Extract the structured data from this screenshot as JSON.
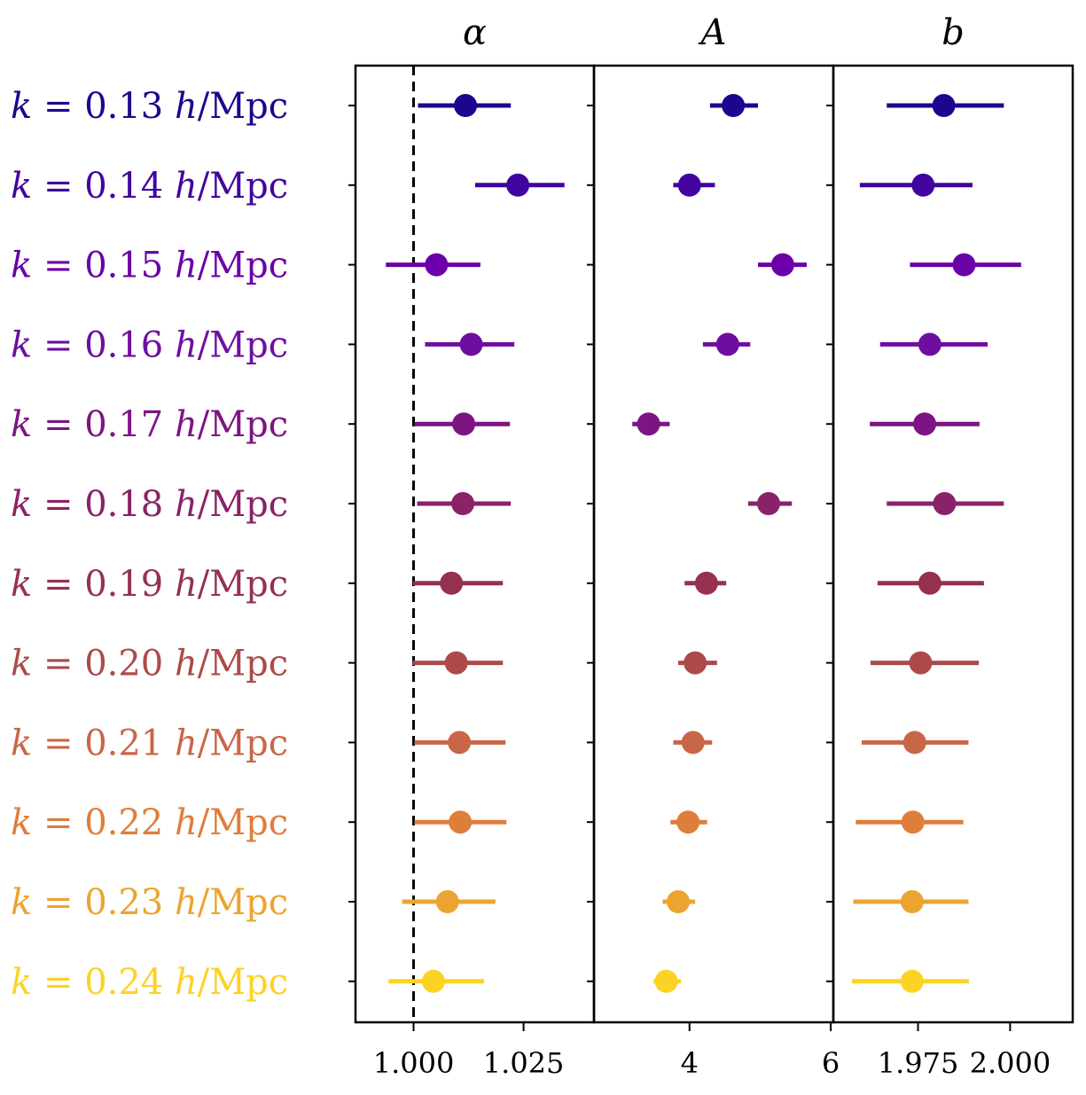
{
  "chart_data": {
    "type": "scatter",
    "subtype": "forest-plot with error bars",
    "row_label_template": "k = {k} h/Mpc",
    "rows": [
      {
        "k": "0.13",
        "color": "#1c068e"
      },
      {
        "k": "0.14",
        "color": "#42049e"
      },
      {
        "k": "0.15",
        "color": "#6a00a8"
      },
      {
        "k": "0.16",
        "color": "#6e0ea0"
      },
      {
        "k": "0.17",
        "color": "#7c1582"
      },
      {
        "k": "0.18",
        "color": "#8a2267"
      },
      {
        "k": "0.19",
        "color": "#95314f"
      },
      {
        "k": "0.20",
        "color": "#ac4a4a"
      },
      {
        "k": "0.21",
        "color": "#c96648"
      },
      {
        "k": "0.22",
        "color": "#df7d3b"
      },
      {
        "k": "0.23",
        "color": "#eca430"
      },
      {
        "k": "0.24",
        "color": "#fcd225"
      }
    ],
    "panels": [
      {
        "title": "α",
        "xlim": [
          0.9868,
          1.041
        ],
        "ticks": [
          {
            "value": 1.0,
            "label": "1.000"
          },
          {
            "value": 1.025,
            "label": "1.025"
          }
        ],
        "reference_line": 1.0,
        "points": [
          {
            "value": 1.0118,
            "low": 1.001,
            "high": 1.0221
          },
          {
            "value": 1.0237,
            "low": 1.014,
            "high": 1.0343
          },
          {
            "value": 1.0052,
            "low": 0.9937,
            "high": 1.0152
          },
          {
            "value": 1.0131,
            "low": 1.0026,
            "high": 1.0229
          },
          {
            "value": 1.0114,
            "low": 1.0002,
            "high": 1.0219
          },
          {
            "value": 1.0112,
            "low": 1.0008,
            "high": 1.0221
          },
          {
            "value": 1.0086,
            "low": 0.9999,
            "high": 1.0203
          },
          {
            "value": 1.0097,
            "low": 0.9998,
            "high": 1.0203
          },
          {
            "value": 1.0104,
            "low": 1.0002,
            "high": 1.0209
          },
          {
            "value": 1.0106,
            "low": 1.0002,
            "high": 1.0211
          },
          {
            "value": 1.0077,
            "low": 0.9974,
            "high": 1.0186
          },
          {
            "value": 1.0045,
            "low": 0.9943,
            "high": 1.016
          }
        ]
      },
      {
        "title": "A",
        "xlim": [
          2.647,
          6.037
        ],
        "ticks": [
          {
            "value": 4,
            "label": "4"
          },
          {
            "value": 6,
            "label": "6"
          }
        ],
        "points": [
          {
            "value": 4.62,
            "low": 4.29,
            "high": 4.97
          },
          {
            "value": 4.0,
            "low": 3.77,
            "high": 4.36
          },
          {
            "value": 5.32,
            "low": 4.97,
            "high": 5.66
          },
          {
            "value": 4.54,
            "low": 4.19,
            "high": 4.86
          },
          {
            "value": 3.42,
            "low": 3.19,
            "high": 3.72
          },
          {
            "value": 5.12,
            "low": 4.83,
            "high": 5.45
          },
          {
            "value": 4.24,
            "low": 3.93,
            "high": 4.52
          },
          {
            "value": 4.08,
            "low": 3.84,
            "high": 4.39
          },
          {
            "value": 4.05,
            "low": 3.77,
            "high": 4.32
          },
          {
            "value": 3.98,
            "low": 3.73,
            "high": 4.25
          },
          {
            "value": 3.84,
            "low": 3.62,
            "high": 4.08
          },
          {
            "value": 3.67,
            "low": 3.49,
            "high": 3.88
          }
        ]
      },
      {
        "title": "b",
        "xlim": [
          1.952,
          2.017
        ],
        "ticks": [
          {
            "value": 1.975,
            "label": "1.975"
          },
          {
            "value": 2.0,
            "label": "2.000"
          }
        ],
        "points": [
          {
            "value": 1.982,
            "low": 1.9665,
            "high": 1.9983
          },
          {
            "value": 1.9764,
            "low": 1.9592,
            "high": 1.9898
          },
          {
            "value": 1.9875,
            "low": 1.9728,
            "high": 2.003
          },
          {
            "value": 1.9782,
            "low": 1.9647,
            "high": 1.9939
          },
          {
            "value": 1.9768,
            "low": 1.9619,
            "high": 1.9917
          },
          {
            "value": 1.9822,
            "low": 1.9665,
            "high": 1.9983
          },
          {
            "value": 1.9782,
            "low": 1.964,
            "high": 1.9929
          },
          {
            "value": 1.9757,
            "low": 1.9621,
            "high": 1.9915
          },
          {
            "value": 1.9741,
            "low": 1.9597,
            "high": 1.9887
          },
          {
            "value": 1.9736,
            "low": 1.9581,
            "high": 1.9873
          },
          {
            "value": 1.9734,
            "low": 1.9574,
            "high": 1.9887
          },
          {
            "value": 1.9734,
            "low": 1.9571,
            "high": 1.9888
          }
        ]
      }
    ]
  }
}
